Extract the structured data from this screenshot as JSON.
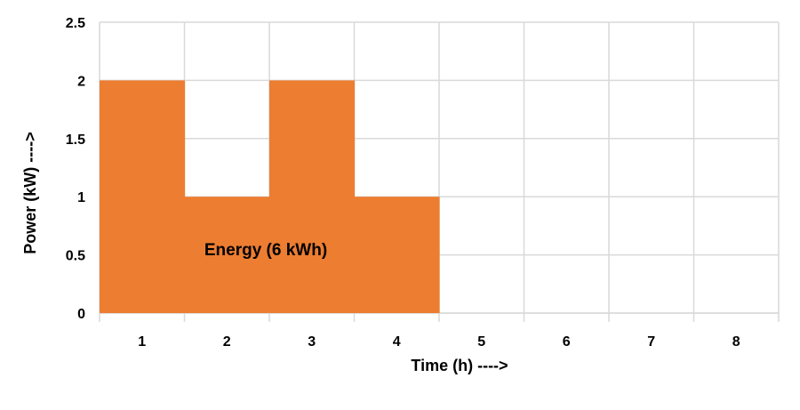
{
  "chart_data": {
    "type": "bar",
    "categories": [
      "1",
      "2",
      "3",
      "4",
      "5",
      "6",
      "7",
      "8"
    ],
    "values": [
      2,
      1,
      2,
      1,
      0,
      0,
      0,
      0
    ],
    "xlabel": "Time (h) ---->",
    "ylabel": "Power (kW) ---->",
    "ylim": [
      0,
      2.5
    ],
    "yticks": [
      "0",
      "0.5",
      "1",
      "1.5",
      "2",
      "2.5"
    ],
    "grid": true,
    "annotation": "Energy (6 kWh)",
    "bar_color": "#ed7d31",
    "grid_color": "#d9d9d9"
  }
}
